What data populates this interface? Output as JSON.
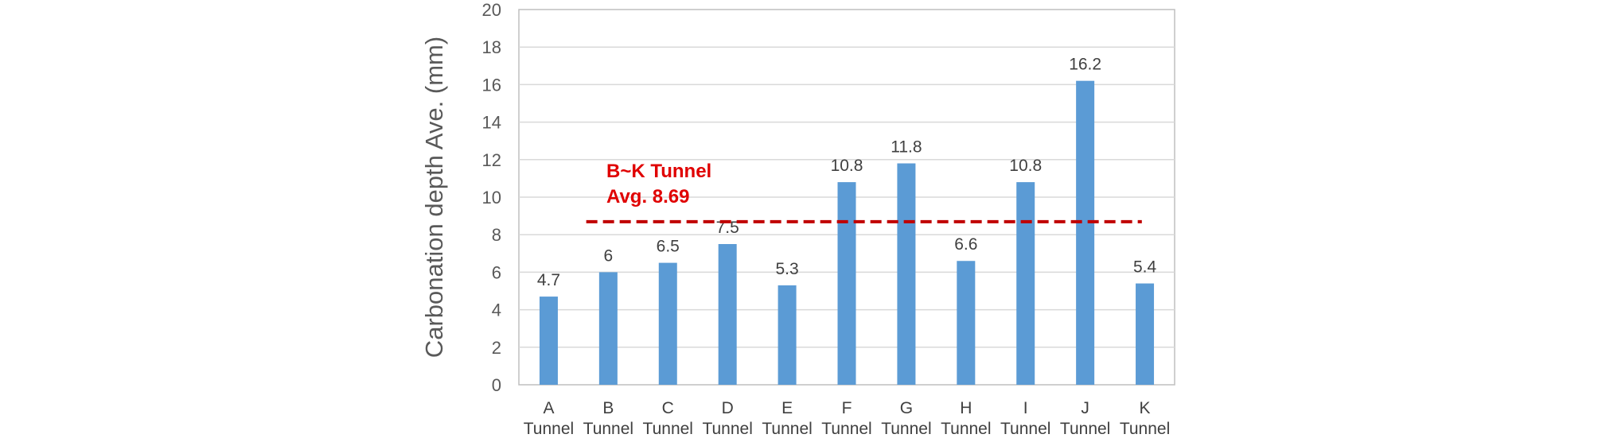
{
  "chart_data": {
    "type": "bar",
    "categories": [
      [
        "A",
        "Tunnel"
      ],
      [
        "B",
        "Tunnel"
      ],
      [
        "C",
        "Tunnel"
      ],
      [
        "D",
        "Tunnel"
      ],
      [
        "E",
        "Tunnel"
      ],
      [
        "F",
        "Tunnel"
      ],
      [
        "G",
        "Tunnel"
      ],
      [
        "H",
        "Tunnel"
      ],
      [
        "I",
        "Tunnel"
      ],
      [
        "J",
        "Tunnel"
      ],
      [
        "K",
        "Tunnel"
      ]
    ],
    "values": [
      4.7,
      6,
      6.5,
      7.5,
      5.3,
      10.8,
      11.8,
      6.6,
      10.8,
      16.2,
      5.4
    ],
    "data_labels": [
      "4.7",
      "6",
      "6.5",
      "7.5",
      "5.3",
      "10.8",
      "11.8",
      "6.6",
      "10.8",
      "16.2",
      "5.4"
    ],
    "title": "",
    "xlabel": "",
    "ylabel": "Carbonation depth Ave. (mm)",
    "ylim": [
      0,
      20
    ],
    "yticks": [
      0,
      2,
      4,
      6,
      8,
      10,
      12,
      14,
      16,
      18,
      20
    ],
    "grid": true,
    "bar_color": "#5b9bd5",
    "reference_line": {
      "value": 8.69,
      "style": "dashed",
      "color": "#c00000",
      "label_lines": [
        "B~K Tunnel",
        "Avg. 8.69"
      ],
      "label_color": "#e00000",
      "from_category": 1,
      "to_category": 10
    }
  }
}
